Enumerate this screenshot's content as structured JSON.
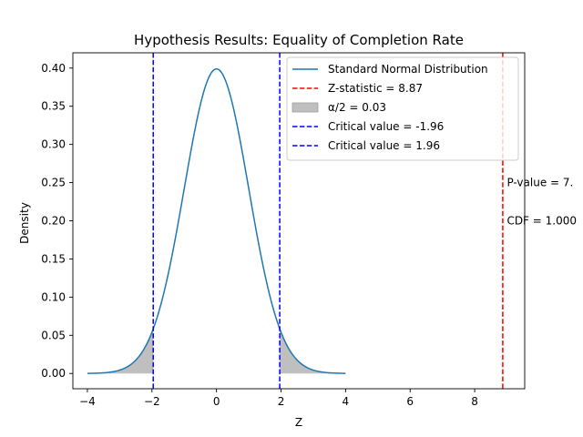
{
  "chart_data": {
    "type": "line",
    "title": "Hypothesis Results: Equality of Completion Rate",
    "xlabel": "Z",
    "ylabel": "Density",
    "xlim": [
      -4.45,
      9.55
    ],
    "ylim": [
      -0.02,
      0.42
    ],
    "xticks": [
      -4,
      -2,
      0,
      2,
      4,
      6,
      8
    ],
    "xtick_labels": [
      "−4",
      "−2",
      "0",
      "2",
      "4",
      "6",
      "8"
    ],
    "yticks": [
      0.0,
      0.05,
      0.1,
      0.15,
      0.2,
      0.25,
      0.3,
      0.35,
      0.4
    ],
    "ytick_labels": [
      "0.00",
      "0.05",
      "0.10",
      "0.15",
      "0.20",
      "0.25",
      "0.30",
      "0.35",
      "0.40"
    ],
    "grid": false,
    "legend_position": "top-right",
    "series": [
      {
        "name": "Standard Normal Distribution",
        "color": "#1f77b4",
        "kind": "curve",
        "x": [
          -4.0,
          -3.5,
          -3.0,
          -2.5,
          -2.0,
          -1.75,
          -1.5,
          -1.25,
          -1.0,
          -0.75,
          -0.5,
          -0.25,
          0.0,
          0.25,
          0.5,
          0.75,
          1.0,
          1.25,
          1.5,
          1.75,
          2.0,
          2.5,
          3.0,
          3.5,
          4.0
        ],
        "y": [
          0.0001,
          0.0009,
          0.0044,
          0.0175,
          0.054,
          0.0863,
          0.1295,
          0.1826,
          0.242,
          0.3011,
          0.3521,
          0.3867,
          0.3989,
          0.3867,
          0.3521,
          0.3011,
          0.242,
          0.1826,
          0.1295,
          0.0863,
          0.054,
          0.0175,
          0.0044,
          0.0009,
          0.0001
        ]
      },
      {
        "name": "Z-statistic = 8.87",
        "color": "#ff0000",
        "kind": "vline",
        "x": 8.87
      },
      {
        "name": "α/2 = 0.03",
        "color": "#bfbfbf",
        "kind": "fill",
        "regions": [
          [
            -4.0,
            -1.96
          ],
          [
            1.96,
            4.0
          ]
        ]
      },
      {
        "name": "Critical value = -1.96",
        "color": "#0000ff",
        "kind": "vline",
        "x": -1.96
      },
      {
        "name": "Critical value = 1.96",
        "color": "#0000ff",
        "kind": "vline",
        "x": 1.96
      }
    ],
    "annotations": [
      {
        "text": "P-value = 7.",
        "x": 8.97,
        "y": 0.25
      },
      {
        "text": "CDF = 1.000",
        "x": 8.97,
        "y": 0.2
      }
    ]
  }
}
